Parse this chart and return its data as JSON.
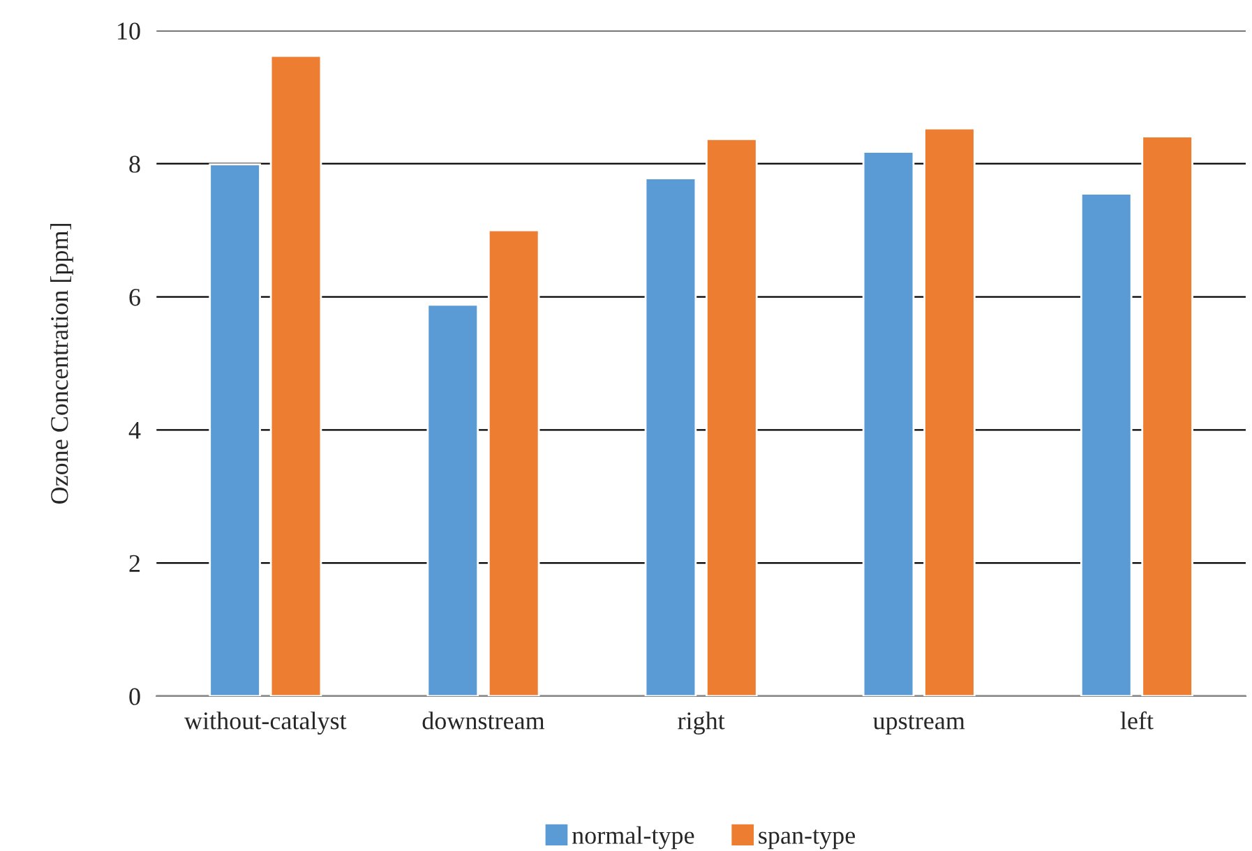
{
  "chart_data": {
    "type": "bar",
    "ylabel": "Ozone Concentration [ppm]",
    "categories": [
      "without-catalyst",
      "downstream",
      "right",
      "upstream",
      "left"
    ],
    "series": [
      {
        "name": "normal-type",
        "color": "#5b9bd5",
        "values": [
          7.99,
          5.88,
          7.78,
          8.18,
          7.55
        ]
      },
      {
        "name": "span-type",
        "color": "#ed7d31",
        "values": [
          9.62,
          7.0,
          8.37,
          8.53,
          8.41
        ]
      }
    ],
    "ylim": [
      0,
      10
    ],
    "yticks": [
      0,
      2,
      4,
      6,
      8,
      10
    ],
    "grid": "y",
    "legend": "bottom"
  }
}
